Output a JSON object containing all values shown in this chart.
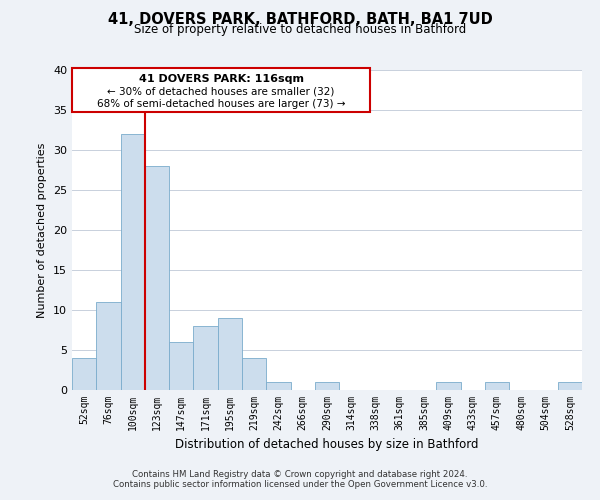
{
  "title": "41, DOVERS PARK, BATHFORD, BATH, BA1 7UD",
  "subtitle": "Size of property relative to detached houses in Bathford",
  "xlabel": "Distribution of detached houses by size in Bathford",
  "ylabel": "Number of detached properties",
  "bar_labels": [
    "52sqm",
    "76sqm",
    "100sqm",
    "123sqm",
    "147sqm",
    "171sqm",
    "195sqm",
    "219sqm",
    "242sqm",
    "266sqm",
    "290sqm",
    "314sqm",
    "338sqm",
    "361sqm",
    "385sqm",
    "409sqm",
    "433sqm",
    "457sqm",
    "480sqm",
    "504sqm",
    "528sqm"
  ],
  "bar_values": [
    4,
    11,
    32,
    28,
    6,
    8,
    9,
    4,
    1,
    0,
    1,
    0,
    0,
    0,
    0,
    1,
    0,
    1,
    0,
    0,
    1
  ],
  "bar_color": "#ccdded",
  "bar_edge_color": "#7aaccc",
  "vline_color": "#cc0000",
  "ylim": [
    0,
    40
  ],
  "yticks": [
    0,
    5,
    10,
    15,
    20,
    25,
    30,
    35,
    40
  ],
  "annotation_line1": "41 DOVERS PARK: 116sqm",
  "annotation_line2": "← 30% of detached houses are smaller (32)",
  "annotation_line3": "68% of semi-detached houses are larger (73) →",
  "footnote1": "Contains HM Land Registry data © Crown copyright and database right 2024.",
  "footnote2": "Contains public sector information licensed under the Open Government Licence v3.0.",
  "bg_color": "#eef2f7",
  "plot_bg_color": "#ffffff",
  "grid_color": "#c8d0dc"
}
